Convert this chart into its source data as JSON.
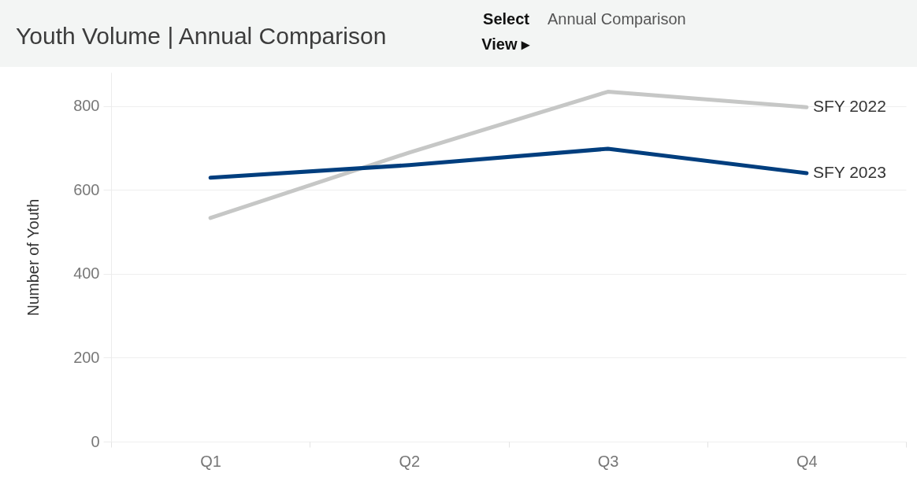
{
  "chart_data": {
    "type": "line",
    "title": "Youth Volume | Annual Comparison",
    "annotations": [
      "Select View ▸",
      "Annual Comparison"
    ],
    "ylabel": "Number of Youth",
    "categories": [
      "Q1",
      "Q2",
      "Q3",
      "Q4"
    ],
    "series": [
      {
        "name": "SFY 2022",
        "color": "#c6c7c6",
        "values": [
          533,
          689,
          834,
          797
        ]
      },
      {
        "name": "SFY 2023",
        "color": "#003e7e",
        "values": [
          629,
          659,
          698,
          640
        ]
      }
    ],
    "ylim": [
      0,
      880
    ],
    "yticks": [
      0,
      200,
      400,
      600,
      800
    ],
    "grid": "y",
    "legend": false,
    "line_style": "solid"
  }
}
